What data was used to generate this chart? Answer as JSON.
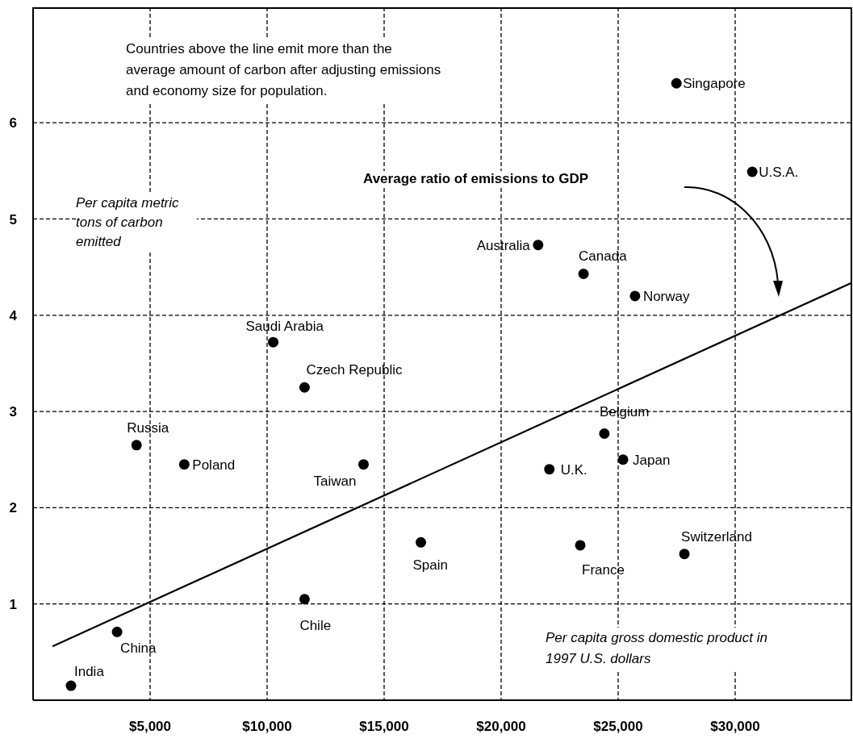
{
  "chart_data": {
    "type": "scatter",
    "xlabel": "Per capita gross domestic product in 1997 U.S. dollars",
    "ylabel": "Per capita metric tons of carbon emitted",
    "xlim": [
      0,
      35000
    ],
    "ylim": [
      0,
      7.2
    ],
    "xticks": [
      {
        "value": 5000,
        "label": "$5,000"
      },
      {
        "value": 10000,
        "label": "$10,000"
      },
      {
        "value": 15000,
        "label": "$15,000"
      },
      {
        "value": 20000,
        "label": "$20,000"
      },
      {
        "value": 25000,
        "label": "$25,000"
      },
      {
        "value": 30000,
        "label": "$30,000"
      }
    ],
    "yticks": [
      1,
      2,
      3,
      4,
      5,
      6
    ],
    "grid": true,
    "series": [
      {
        "marker": "circle",
        "color": "#000000",
        "x": [
          1620,
          3590,
          4420,
          6460,
          10260,
          11600,
          14120,
          11600,
          16570,
          21580,
          23520,
          25720,
          24410,
          25210,
          22060,
          23380,
          27830,
          27490,
          30730
        ],
        "values": [
          0.15,
          0.71,
          2.65,
          2.45,
          3.72,
          3.25,
          2.45,
          1.05,
          1.64,
          4.73,
          4.43,
          4.2,
          2.77,
          2.5,
          2.4,
          1.61,
          1.52,
          6.41,
          5.49
        ]
      },
      {
        "type": "line",
        "name": "Average ratio of emissions to GDP",
        "color": "#000000",
        "line_style": "solid",
        "x": [
          830,
          35000
        ],
        "values": [
          0.56,
          4.34
        ]
      }
    ],
    "annotations": [
      "Countries above the line emit more than the average amount of carbon after adjusting emissions and economy size for population.",
      {
        "text": "India",
        "x": 1620,
        "y": 0.15
      },
      {
        "text": "China",
        "x": 3590,
        "y": 0.71
      },
      {
        "text": "Russia",
        "x": 4420,
        "y": 2.65
      },
      {
        "text": "Poland",
        "x": 6460,
        "y": 2.45
      },
      {
        "text": "Saudi Arabia",
        "x": 10260,
        "y": 3.72
      },
      {
        "text": "Czech Republic",
        "x": 11600,
        "y": 3.25
      },
      {
        "text": "Taiwan",
        "x": 14120,
        "y": 2.45
      },
      {
        "text": "Chile",
        "x": 11600,
        "y": 1.05
      },
      {
        "text": "Spain",
        "x": 16570,
        "y": 1.64
      },
      {
        "text": "Australia",
        "x": 21580,
        "y": 4.73
      },
      {
        "text": "Canada",
        "x": 23520,
        "y": 4.43
      },
      {
        "text": "Norway",
        "x": 25720,
        "y": 4.2
      },
      {
        "text": "Belgium",
        "x": 24410,
        "y": 2.77
      },
      {
        "text": "Japan",
        "x": 25210,
        "y": 2.5
      },
      {
        "text": "U.K.",
        "x": 22060,
        "y": 2.4
      },
      {
        "text": "France",
        "x": 23380,
        "y": 1.61
      },
      {
        "text": "Switzerland",
        "x": 27830,
        "y": 1.52
      },
      {
        "text": "Singapore",
        "x": 27490,
        "y": 6.41
      },
      {
        "text": "U.S.A.",
        "x": 30730,
        "y": 5.49
      }
    ]
  }
}
